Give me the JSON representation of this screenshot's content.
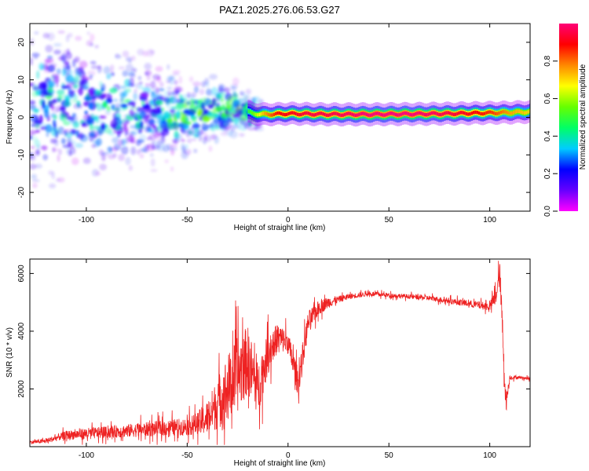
{
  "title": "PAZ1.2025.276.06.53.G27",
  "colors": {
    "snr_line": "#ee2222",
    "axis": "#000000",
    "colorbar_stops": [
      "#ff00ff",
      "#6600ff",
      "#0000ff",
      "#00ccff",
      "#00ff66",
      "#66ff00",
      "#ffff00",
      "#ff8800",
      "#ff0000",
      "#ff0077"
    ]
  },
  "chart_data": [
    {
      "type": "heatmap",
      "title": "PAZ1.2025.276.06.53.G27",
      "xlabel": "Height of straight line (km)",
      "ylabel": "Frequency (Hz)",
      "xlim": [
        -128,
        120
      ],
      "ylim": [
        -25,
        25
      ],
      "xticks": [
        -100,
        -50,
        0,
        50,
        100
      ],
      "xtick_labels": [
        "-100",
        "-50",
        "0",
        "50",
        "100"
      ],
      "yticks": [
        -20,
        -10,
        0,
        10,
        20
      ],
      "ytick_labels": [
        "-20",
        "-10",
        "0",
        "10",
        "20"
      ],
      "ridge": {
        "x": [
          -128,
          -110,
          -90,
          -70,
          -50,
          -35,
          -25,
          -18,
          -12,
          -5,
          0,
          10,
          20,
          40,
          60,
          80,
          100,
          110,
          120
        ],
        "frequency": [
          3,
          4,
          2,
          1.5,
          0,
          2,
          2.5,
          1,
          0.8,
          0.9,
          1,
          0.9,
          0.8,
          0.8,
          0.9,
          1.0,
          1.2,
          1.3,
          1.5
        ],
        "amplitude": [
          0.05,
          0.15,
          0.25,
          0.3,
          0.3,
          0.35,
          0.35,
          0.55,
          0.75,
          0.9,
          0.9,
          0.95,
          0.95,
          1.0,
          1.0,
          0.95,
          0.85,
          0.75,
          0.7
        ]
      },
      "colorbar": {
        "label": "Normalized spectral amplitude",
        "range": [
          0,
          1
        ],
        "ticks": [
          0.0,
          0.2,
          0.4,
          0.6,
          0.8
        ],
        "tick_labels": [
          "0.0",
          "0.2",
          "0.4",
          "0.6",
          "0.8"
        ]
      }
    },
    {
      "type": "line",
      "xlabel": "Height of straight line (km)",
      "ylabel": "SNR (10 * v/v)",
      "xlim": [
        -128,
        120
      ],
      "ylim": [
        0,
        6500
      ],
      "xticks": [
        -100,
        -50,
        0,
        50,
        100
      ],
      "xtick_labels": [
        "-100",
        "-50",
        "0",
        "50",
        "100"
      ],
      "yticks": [
        2000,
        4000,
        6000
      ],
      "ytick_labels": [
        "2000",
        "4000",
        "6000"
      ],
      "series": [
        {
          "name": "SNR",
          "x": [
            -128,
            -120,
            -110,
            -100,
            -90,
            -80,
            -70,
            -60,
            -50,
            -45,
            -40,
            -35,
            -30,
            -25,
            -20,
            -15,
            -10,
            -5,
            0,
            5,
            10,
            15,
            20,
            25,
            30,
            40,
            50,
            60,
            70,
            80,
            90,
            100,
            103,
            105,
            106,
            108,
            110,
            115,
            120
          ],
          "y": [
            150,
            200,
            400,
            450,
            500,
            550,
            600,
            650,
            700,
            800,
            1000,
            1500,
            2000,
            2500,
            3000,
            2000,
            3200,
            3800,
            3600,
            2200,
            4300,
            4800,
            5000,
            5100,
            5200,
            5300,
            5250,
            5200,
            5150,
            5050,
            4950,
            4850,
            5200,
            6000,
            4500,
            1500,
            2400,
            2400,
            2350
          ],
          "noise": [
            60,
            80,
            150,
            200,
            200,
            230,
            250,
            280,
            300,
            400,
            600,
            900,
            1200,
            1300,
            1200,
            900,
            700,
            500,
            400,
            500,
            400,
            250,
            200,
            120,
            100,
            80,
            80,
            80,
            90,
            100,
            120,
            150,
            300,
            400,
            600,
            400,
            80,
            50,
            50
          ]
        }
      ]
    }
  ]
}
